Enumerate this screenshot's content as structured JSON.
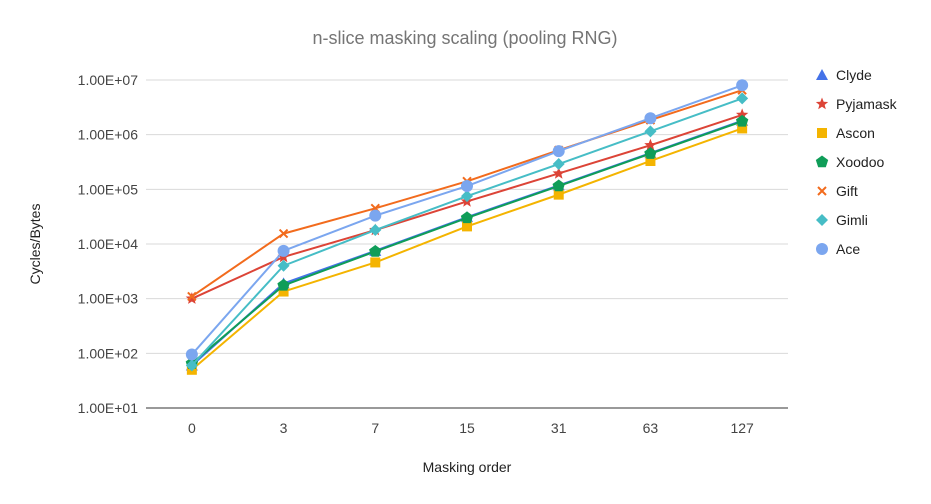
{
  "chart_data": {
    "type": "line",
    "title": "n-slice masking scaling (pooling RNG)",
    "xlabel": "Masking order",
    "ylabel": "Cycles/Bytes",
    "yscale": "log",
    "ylim": [
      10,
      10000000
    ],
    "yticks": [
      10,
      100,
      1000,
      10000,
      100000,
      1000000,
      10000000
    ],
    "ytick_labels": [
      "1.00E+01",
      "1.00E+02",
      "1.00E+03",
      "1.00E+04",
      "1.00E+05",
      "1.00E+06",
      "1.00E+07"
    ],
    "categories": [
      "0",
      "3",
      "7",
      "15",
      "31",
      "63",
      "127"
    ],
    "grid": true,
    "legend_position": "right",
    "series": [
      {
        "name": "Clyde",
        "color": "#4472e8",
        "marker": "triangle",
        "values": [
          60,
          1900,
          7500,
          31000,
          118000,
          460000,
          1800000
        ]
      },
      {
        "name": "Pyjamask",
        "color": "#dc4437",
        "marker": "star",
        "values": [
          1000,
          5800,
          18000,
          60000,
          195000,
          640000,
          2300000
        ]
      },
      {
        "name": "Ascon",
        "color": "#f4b400",
        "marker": "square",
        "values": [
          50,
          1350,
          4600,
          21000,
          80000,
          330000,
          1300000
        ]
      },
      {
        "name": "Xoodoo",
        "color": "#0f9d58",
        "marker": "pentagon",
        "values": [
          65,
          1750,
          7300,
          30000,
          115000,
          450000,
          1750000
        ]
      },
      {
        "name": "Gift",
        "color": "#f26b1d",
        "marker": "x",
        "values": [
          1100,
          15500,
          45000,
          140000,
          520000,
          1850000,
          6500000
        ]
      },
      {
        "name": "Gimli",
        "color": "#46bdc6",
        "marker": "diamond",
        "values": [
          60,
          4000,
          18000,
          75000,
          290000,
          1150000,
          4600000
        ]
      },
      {
        "name": "Ace",
        "color": "#7ba6ef",
        "marker": "circle",
        "values": [
          95,
          7500,
          33000,
          115000,
          500000,
          2000000,
          8000000
        ]
      }
    ]
  }
}
